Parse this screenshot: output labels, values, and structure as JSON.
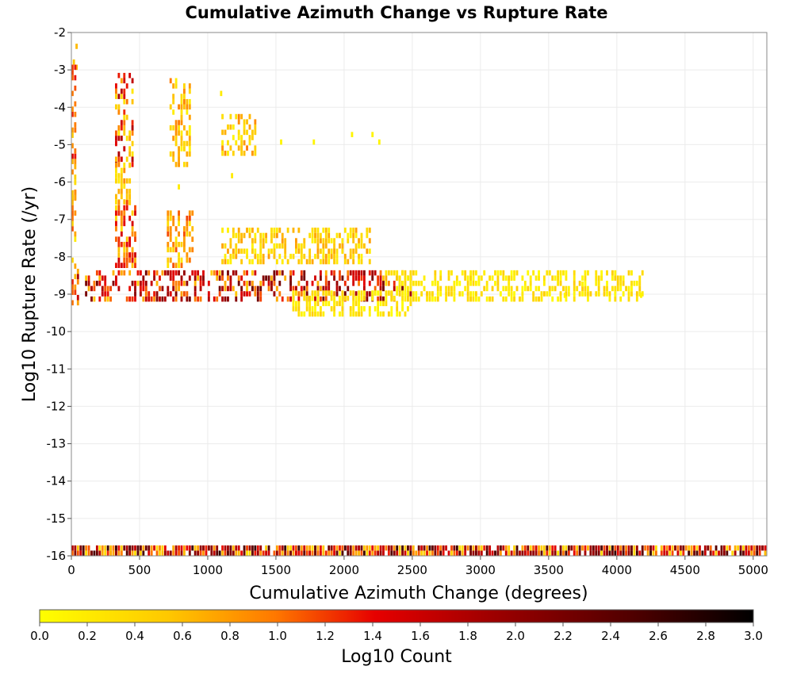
{
  "chart_data": {
    "type": "heatmap",
    "title": "Cumulative Azimuth Change vs Rupture Rate",
    "xlabel": "Cumulative Azimuth Change (degrees)",
    "ylabel": "Log10 Rupture Rate (/yr)",
    "xlim": [
      0,
      5100
    ],
    "ylim": [
      -16,
      -2
    ],
    "x_ticks": [
      "0",
      "500",
      "1000",
      "1500",
      "2000",
      "2500",
      "3000",
      "3500",
      "4000",
      "4500",
      "5000"
    ],
    "y_ticks": [
      "-2",
      "-3",
      "-4",
      "-5",
      "-6",
      "-7",
      "-8",
      "-9",
      "-10",
      "-11",
      "-12",
      "-13",
      "-14",
      "-15",
      "-16"
    ],
    "grid": true,
    "bin_width_x": 20,
    "bin_height_y": 0.14,
    "colorbar": {
      "label": "Log10 Count",
      "min": 0.0,
      "max": 3.0,
      "ticks": [
        "0.0",
        "0.2",
        "0.4",
        "0.6",
        "0.8",
        "1.0",
        "1.2",
        "1.4",
        "1.6",
        "1.8",
        "2.0",
        "2.2",
        "2.4",
        "2.6",
        "2.8",
        "3.0"
      ],
      "colors": [
        "#ffff00",
        "#ffc800",
        "#ff7800",
        "#e60000",
        "#a00000",
        "#500000",
        "#000000"
      ]
    },
    "regions": [
      {
        "x": [
          10,
          40
        ],
        "y": [
          -3.0,
          -2.4
        ],
        "v": [
          0.3,
          0.7
        ]
      },
      {
        "x": [
          0,
          30
        ],
        "y": [
          -6.5,
          -2.9
        ],
        "v": [
          0.3,
          1.6
        ]
      },
      {
        "x": [
          0,
          40
        ],
        "y": [
          -8.3,
          -6.3
        ],
        "v": [
          0.2,
          1.2
        ]
      },
      {
        "x": [
          0,
          50
        ],
        "y": [
          -9.3,
          -8.2
        ],
        "v": [
          0.6,
          1.9
        ]
      },
      {
        "x": [
          320,
          460
        ],
        "y": [
          -5.6,
          -3.2
        ],
        "v": [
          0.2,
          1.9
        ]
      },
      {
        "x": [
          320,
          440
        ],
        "y": [
          -6.6,
          -5.6
        ],
        "v": [
          0.2,
          0.9
        ]
      },
      {
        "x": [
          320,
          480
        ],
        "y": [
          -8.3,
          -6.6
        ],
        "v": [
          0.3,
          1.6
        ]
      },
      {
        "x": [
          720,
          880
        ],
        "y": [
          -5.6,
          -3.3
        ],
        "v": [
          0.1,
          1.0
        ]
      },
      {
        "x": [
          700,
          900
        ],
        "y": [
          -8.3,
          -6.8
        ],
        "v": [
          0.2,
          1.2
        ]
      },
      {
        "x": [
          1100,
          1360
        ],
        "y": [
          -5.3,
          -4.3
        ],
        "v": [
          0.1,
          1.0
        ]
      },
      {
        "x": [
          1100,
          2200
        ],
        "y": [
          -8.2,
          -7.3
        ],
        "v": [
          0.1,
          0.8
        ]
      },
      {
        "x": [
          100,
          2500
        ],
        "y": [
          -9.2,
          -8.4
        ],
        "v": [
          0.5,
          2.3
        ]
      },
      {
        "x": [
          2300,
          4200
        ],
        "y": [
          -9.2,
          -8.4
        ],
        "v": [
          0.0,
          0.5
        ]
      },
      {
        "x": [
          1600,
          2500
        ],
        "y": [
          -9.6,
          -9.0
        ],
        "v": [
          0.0,
          0.5
        ]
      },
      {
        "x": [
          0,
          5100
        ],
        "y": [
          -16.0,
          -15.85
        ],
        "v": [
          0.3,
          2.7
        ]
      }
    ],
    "points": [
      {
        "x": 1090,
        "y": -3.7,
        "v": 0.2
      },
      {
        "x": 1530,
        "y": -5.0,
        "v": 0.1
      },
      {
        "x": 1770,
        "y": -5.0,
        "v": 0.1
      },
      {
        "x": 2050,
        "y": -4.8,
        "v": 0.1
      },
      {
        "x": 2200,
        "y": -4.8,
        "v": 0.1
      },
      {
        "x": 2250,
        "y": -5.0,
        "v": 0.1
      },
      {
        "x": 780,
        "y": -6.2,
        "v": 0.2
      },
      {
        "x": 1170,
        "y": -5.9,
        "v": 0.2
      },
      {
        "x": 3610,
        "y": -9.1,
        "v": 0.1
      },
      {
        "x": 3740,
        "y": -8.8,
        "v": 0.1
      },
      {
        "x": 4170,
        "y": -9.1,
        "v": 0.1
      }
    ]
  }
}
